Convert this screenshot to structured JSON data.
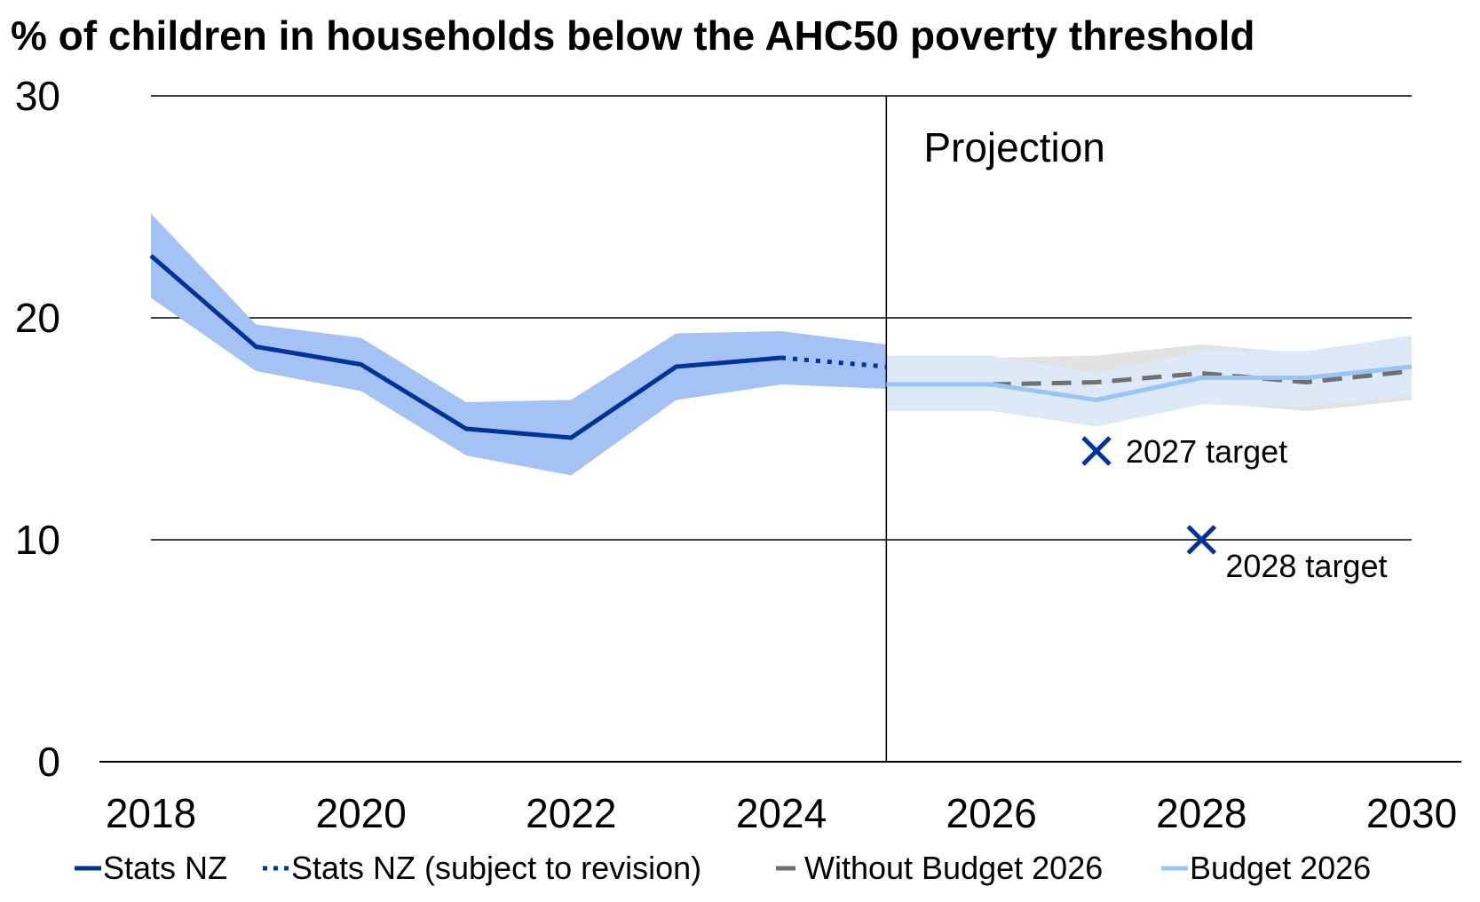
{
  "chart_data": {
    "type": "line",
    "title": "% of children in households below the AHC50 poverty threshold",
    "xlabel": "",
    "ylabel": "",
    "xlim": [
      2018,
      2030
    ],
    "ylim": [
      0,
      30
    ],
    "x_ticks": [
      "2018",
      "2020",
      "2022",
      "2024",
      "2026",
      "2028",
      "2030"
    ],
    "y_ticks": [
      "0",
      "10",
      "20",
      "30"
    ],
    "grid": true,
    "projection_start": 2025,
    "projection_label": "Projection",
    "series": [
      {
        "name": "Stats NZ",
        "style": "solid",
        "color": "#003399",
        "points": [
          [
            2018,
            22.8
          ],
          [
            2019,
            18.7
          ],
          [
            2020,
            17.9
          ],
          [
            2021,
            15.0
          ],
          [
            2022,
            14.6
          ],
          [
            2023,
            17.8
          ],
          [
            2024,
            18.2
          ]
        ],
        "band_upper": [
          [
            2018,
            24.7
          ],
          [
            2019,
            19.7
          ],
          [
            2020,
            19.1
          ],
          [
            2021,
            16.2
          ],
          [
            2022,
            16.3
          ],
          [
            2023,
            19.3
          ],
          [
            2024,
            19.4
          ]
        ],
        "band_lower": [
          [
            2018,
            20.9
          ],
          [
            2019,
            17.6
          ],
          [
            2020,
            16.7
          ],
          [
            2021,
            13.8
          ],
          [
            2022,
            12.9
          ],
          [
            2023,
            16.3
          ],
          [
            2024,
            17.0
          ]
        ],
        "band_color": "#a4c2f4"
      },
      {
        "name": "Stats NZ (subject to revision)",
        "style": "dotted",
        "color": "#003399",
        "points": [
          [
            2024,
            18.2
          ],
          [
            2025,
            17.8
          ]
        ],
        "band_upper": [
          [
            2024,
            19.4
          ],
          [
            2025,
            18.8
          ]
        ],
        "band_lower": [
          [
            2024,
            17.0
          ],
          [
            2025,
            16.8
          ]
        ],
        "band_color": "#a4c2f4"
      },
      {
        "name": "Without Budget 2026",
        "style": "dashed",
        "color": "#707070",
        "points": [
          [
            2026,
            17.0
          ],
          [
            2027,
            17.1
          ],
          [
            2028,
            17.5
          ],
          [
            2029,
            17.1
          ],
          [
            2030,
            17.6
          ]
        ],
        "band_upper": [
          [
            2026,
            18.2
          ],
          [
            2027,
            18.3
          ],
          [
            2028,
            18.8
          ],
          [
            2029,
            18.4
          ],
          [
            2030,
            18.9
          ]
        ],
        "band_lower": [
          [
            2026,
            15.8
          ],
          [
            2027,
            15.9
          ],
          [
            2028,
            16.2
          ],
          [
            2029,
            15.8
          ],
          [
            2030,
            16.3
          ]
        ],
        "band_color": "#e2e2e2"
      },
      {
        "name": "Budget 2026",
        "style": "solid",
        "color": "#99c4f7",
        "points": [
          [
            2025,
            17.0
          ],
          [
            2026,
            17.0
          ],
          [
            2027,
            16.3
          ],
          [
            2028,
            17.3
          ],
          [
            2029,
            17.3
          ],
          [
            2030,
            17.8
          ]
        ],
        "band_upper": [
          [
            2025,
            18.3
          ],
          [
            2026,
            18.3
          ],
          [
            2027,
            17.5
          ],
          [
            2028,
            18.5
          ],
          [
            2029,
            18.5
          ],
          [
            2030,
            19.2
          ]
        ],
        "band_lower": [
          [
            2025,
            15.8
          ],
          [
            2026,
            15.8
          ],
          [
            2027,
            15.1
          ],
          [
            2028,
            16.1
          ],
          [
            2029,
            16.0
          ],
          [
            2030,
            16.5
          ]
        ],
        "band_color": "#dde9f6"
      }
    ],
    "targets": [
      {
        "label": "2027 target",
        "x": 2027,
        "y": 14.0
      },
      {
        "label": "2028 target",
        "x": 2028,
        "y": 10.0
      }
    ],
    "target_color": "#003399",
    "legend_position": "bottom"
  }
}
